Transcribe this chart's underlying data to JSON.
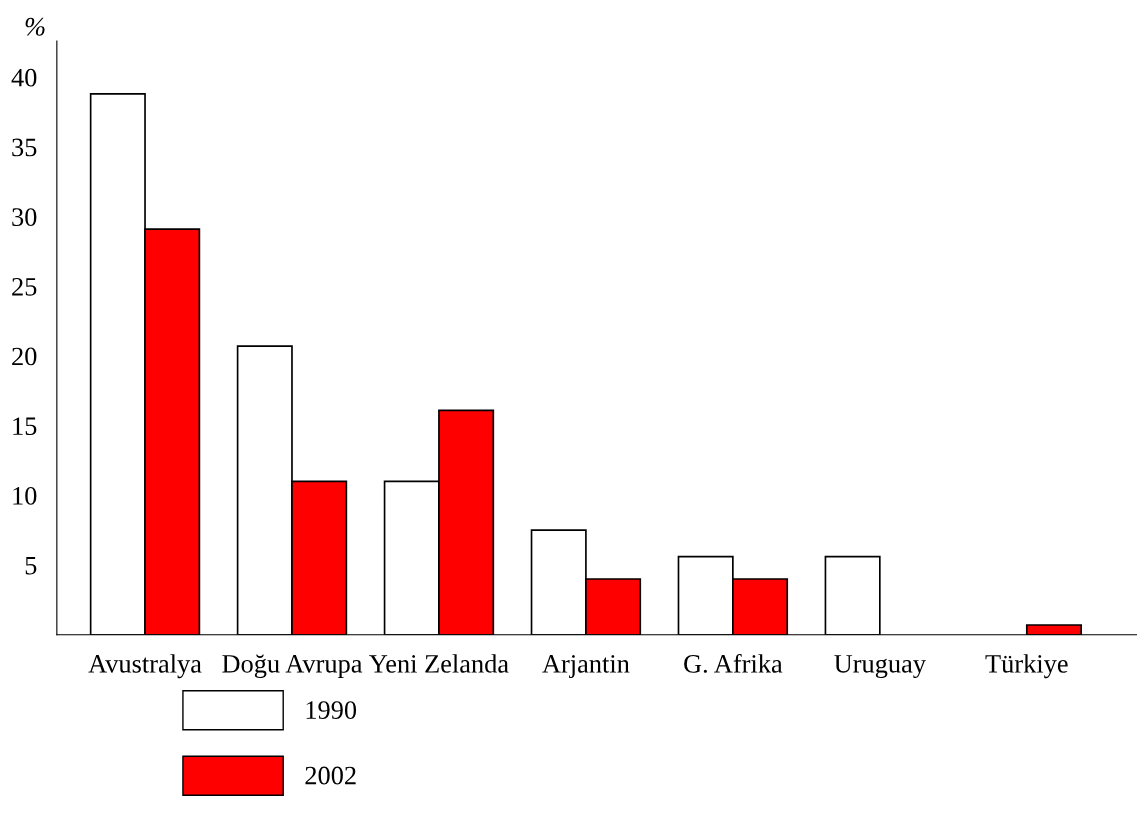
{
  "chart_data": {
    "type": "bar",
    "ylabel": "%",
    "categories": [
      "Avustralya",
      "Doğu Avrupa",
      "Yeni Zelanda",
      "Arjantin",
      "G. Afrika",
      "Uruguay",
      "Türkiye"
    ],
    "series": [
      {
        "name": "1990",
        "color": "#ffffff",
        "values": [
          38.8,
          20.7,
          11,
          7.5,
          5.6,
          5.6,
          null
        ]
      },
      {
        "name": "2002",
        "color": "#ff0000",
        "values": [
          29.1,
          11,
          16.1,
          4,
          4,
          null,
          0.7
        ]
      }
    ],
    "ylim": [
      0,
      42.6
    ],
    "yticks": [
      5,
      10,
      15,
      20,
      25,
      30,
      35,
      40
    ],
    "grid": false,
    "legend": "bottom left"
  }
}
